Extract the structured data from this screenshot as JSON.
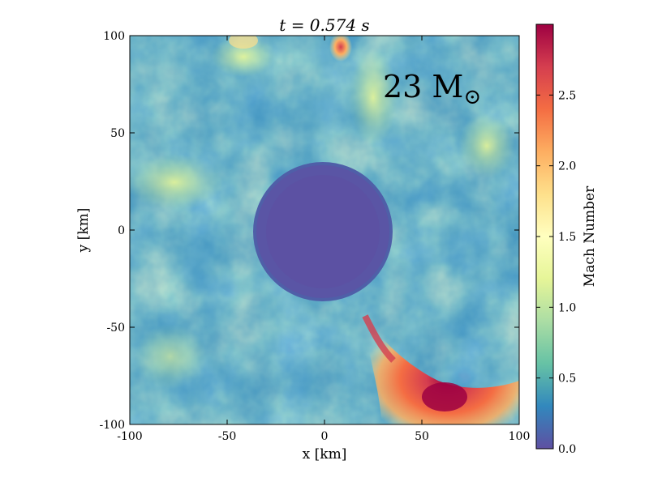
{
  "chart_data": {
    "type": "heatmap",
    "title": "t = 0.574 s",
    "xlabel": "x [km]",
    "ylabel": "y [km]",
    "xlim": [
      -100,
      100
    ],
    "ylim": [
      -100,
      100
    ],
    "x_ticks": [
      -100,
      -50,
      0,
      50,
      100
    ],
    "y_ticks": [
      -100,
      -50,
      0,
      50,
      100
    ],
    "x_tick_labels": [
      "-100",
      "-50",
      "0",
      "50",
      "100"
    ],
    "y_tick_labels": [
      "-100",
      "-50",
      "0",
      "50",
      "100"
    ],
    "annotation": "23 M",
    "annotation_symbol": "⊙",
    "colorbar": {
      "label": "Mach Number",
      "min": 0.0,
      "max": 3.0,
      "ticks": [
        0.0,
        0.5,
        1.0,
        1.5,
        2.0,
        2.5
      ],
      "tick_labels": [
        "0.0",
        "0.5",
        "1.0",
        "1.5",
        "2.0",
        "2.5"
      ],
      "colormap": "Spectral_r",
      "colors": [
        "#5e4fa2",
        "#3288bd",
        "#66c2a5",
        "#abdda4",
        "#e6f598",
        "#ffffbf",
        "#fee08b",
        "#fdae61",
        "#f46d43",
        "#d53e4f",
        "#9e0142"
      ]
    },
    "features": [
      {
        "name": "central-region",
        "x": 0,
        "y": 0,
        "radius_km": 35,
        "mach": 0.1
      },
      {
        "name": "supersonic-plume",
        "x": 60,
        "y": -85,
        "mach": 2.9
      },
      {
        "name": "hot-spot-top",
        "x": 8,
        "y": 95,
        "mach": 2.2
      }
    ],
    "grid": false
  }
}
